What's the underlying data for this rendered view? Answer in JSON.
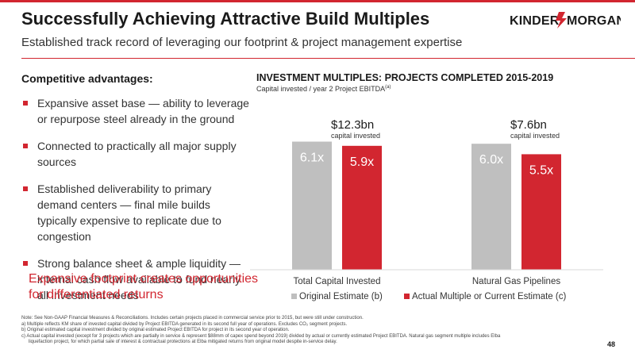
{
  "header": {
    "title": "Successfully Achieving Attractive Build Multiples",
    "subtitle": "Established track record of leveraging our footprint & project management expertise",
    "logo_text": "KINDER MORGAN"
  },
  "advantages": {
    "heading": "Competitive advantages:",
    "bullets": [
      "Expansive asset base — ability to leverage or repurpose steel already in the ground",
      "Connected to practically all major supply sources",
      "Established deliverability to primary demand centers — final mile builds typically expensive to replicate due to congestion",
      "Strong balance sheet & ample liquidity — internal cash flow available to fund nearly all investment needs"
    ]
  },
  "callout": "Expansive footprint creates opportunities for differentiated returns",
  "chart_title": "INVESTMENT MULTIPLES:  PROJECTS COMPLETED 2015-2019",
  "chart_subtitle": "Capital invested / year 2 Project EBITDA",
  "chart_subtitle_note": "(a)",
  "colors": {
    "accent": "#d22630",
    "gray": "#bfbfbf"
  },
  "chart_data": {
    "type": "bar",
    "categories": [
      "Total Capital Invested",
      "Natural Gas Pipelines"
    ],
    "series": [
      {
        "name": "Original Estimate (b)",
        "values": [
          6.1,
          6.0
        ],
        "labels": [
          "6.1x",
          "6.0x"
        ],
        "color": "#bfbfbf"
      },
      {
        "name": "Actual Multiple or Current Estimate (c)",
        "values": [
          5.9,
          5.5
        ],
        "labels": [
          "5.9x",
          "5.5x"
        ],
        "color": "#d22630"
      }
    ],
    "annotations": [
      {
        "category": "Total Capital Invested",
        "value": "$12.3bn",
        "caption": "capital invested"
      },
      {
        "category": "Natural Gas Pipelines",
        "value": "$7.6bn",
        "caption": "capital invested"
      }
    ],
    "ylim": [
      0,
      8.5
    ],
    "legend": "bottom"
  },
  "footnotes": [
    "Note:  See Non-GAAP Financial Measures & Reconciliations. Includes certain projects placed in commercial service prior to 2015, but were still under construction.",
    "a)  Multiple reflects KM share of invested capital divided by Project EBITDA generated in its second full year of operations. Excludes CO₂ segment projects.",
    "b)  Original estimated capital investment divided by original estimated Project EBITDA for project in its second year of operation.",
    "c)  Actual capital invested (except for 3 projects which are partially in service & represent $88mm of capex spend beyond 2019) divided by actual or currently estimated Project EBITDA. Natural gas segment multiple includes Elba",
    "liquefaction project, for which partial sale of interest & contractual protections at Elba mitigated returns from original model despite in-service delay."
  ],
  "page_number": "48"
}
